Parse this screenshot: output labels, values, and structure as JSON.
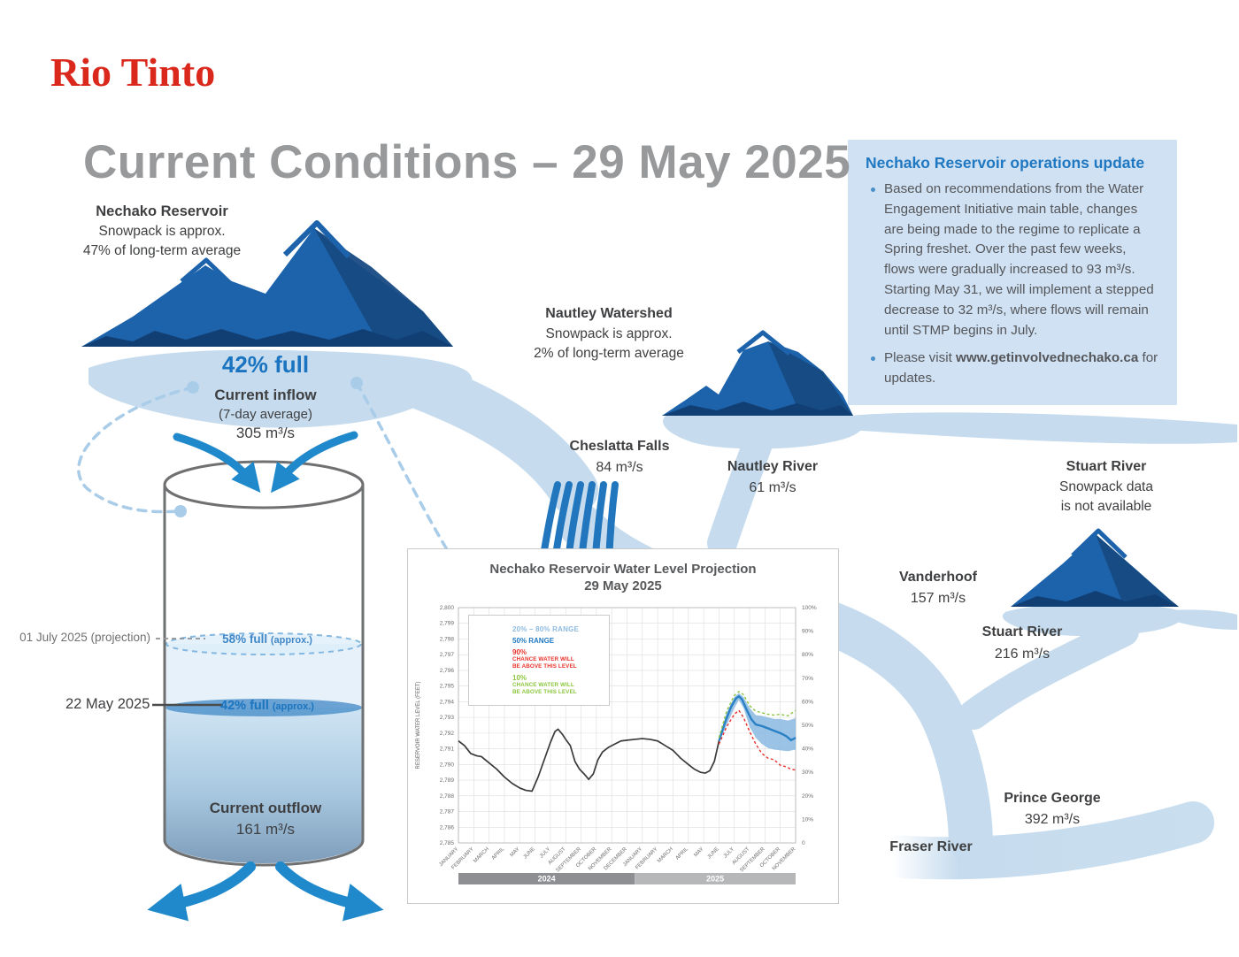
{
  "brand": {
    "logo": "Rio Tinto",
    "logo_color": "#da291c"
  },
  "page_title": "Current Conditions – 29 May 2025",
  "update_box": {
    "title": "Nechako Reservoir operations update",
    "bullet1": "Based on recommendations from the Water Engagement Initiative main table, changes are being made to the regime to replicate a Spring freshet. Over the past few weeks, flows were gradually increased to 93 m³/s. Starting May 31, we will implement a stepped decrease to 32 m³/s, where flows will remain until STMP begins in July.",
    "bullet2_prefix": "Please visit ",
    "bullet2_link": "www.getinvolvednechako.ca",
    "bullet2_suffix": " for updates."
  },
  "nechako_mountain": {
    "name": "Nechako Reservoir",
    "line1": "Snowpack is approx.",
    "line2": "47% of long-term average",
    "fullness": "42% full"
  },
  "inflow": {
    "label": "Current inflow",
    "sub": "(7-day average)",
    "value": "305 m³/s"
  },
  "outflow": {
    "label": "Current outflow",
    "value": "161 m³/s"
  },
  "cylinder": {
    "projection_date": "01 July 2025 (projection)",
    "projection_level": "58% full",
    "projection_approx": "(approx.)",
    "current_date": "22 May 2025",
    "current_level": "42% full",
    "current_approx": "(approx.)"
  },
  "nautley_watershed": {
    "name": "Nautley Watershed",
    "line1": "Snowpack is approx.",
    "line2": "2% of long-term average"
  },
  "stuart_mountain": {
    "name": "Stuart River",
    "line1": "Snowpack data",
    "line2": "is not available"
  },
  "flows": {
    "cheslatta": {
      "name": "Cheslatta Falls",
      "value": "84 m³/s"
    },
    "nautley": {
      "name": "Nautley River",
      "value": "61 m³/s"
    },
    "vanderhoof": {
      "name": "Vanderhoof",
      "value": "157 m³/s"
    },
    "stuart": {
      "name": "Stuart River",
      "value": "216 m³/s"
    },
    "prince_george": {
      "name": "Prince George",
      "value": "392 m³/s"
    },
    "fraser": {
      "name": "Fraser River"
    }
  },
  "legend": {
    "range_label": "20% – 80% RANGE",
    "median_label": "50% RANGE",
    "p90_pct": "90%",
    "p90_line1": "CHANCE WATER WILL",
    "p90_line2": "BE ABOVE THIS LEVEL",
    "p10_pct": "10%",
    "p10_line1": "CHANCE WATER WILL",
    "p10_line2": "BE ABOVE THIS LEVEL"
  },
  "chart_data": {
    "type": "line",
    "title": "Nechako Reservoir Water Level Projection",
    "subtitle": "29 May 2025",
    "ylabel": "RESERVOIR WATER LEVEL (FEET)",
    "ylim": [
      2785,
      2800
    ],
    "y_tick_step": 1,
    "right_axis": {
      "min": 0,
      "max": 100,
      "step": 10,
      "unit": "%",
      "zero_label": "0"
    },
    "grid": true,
    "legend_position": "upper-left",
    "months": [
      "JANUARY",
      "FEBRUARY",
      "MARCH",
      "APRIL",
      "MAY",
      "JUNE",
      "JULY",
      "AUGUST",
      "SEPTEMBER",
      "OCTOBER",
      "NOVEMBER",
      "DECEMBER",
      "JANUARY",
      "FEBRUARY",
      "MARCH",
      "APRIL",
      "MAY",
      "JUNE",
      "JULY",
      "AUGUST",
      "SEPTEMBER",
      "OCTOBER",
      "NOVEMBER"
    ],
    "year_bars": [
      {
        "label": "2024",
        "from": 0,
        "to": 11.5,
        "color": "#8d8f92"
      },
      {
        "label": "2025",
        "from": 11.5,
        "to": 22,
        "color": "#b5b7b9"
      }
    ],
    "series": [
      {
        "name": "historical",
        "color": "#3a3a3a",
        "style": "solid",
        "width": 1.7,
        "points": [
          [
            0,
            2791.5
          ],
          [
            0.4,
            2791.2
          ],
          [
            0.8,
            2790.7
          ],
          [
            1.2,
            2790.55
          ],
          [
            1.5,
            2790.5
          ],
          [
            2,
            2790.1
          ],
          [
            2.5,
            2789.7
          ],
          [
            3,
            2789.2
          ],
          [
            3.5,
            2788.8
          ],
          [
            4,
            2788.5
          ],
          [
            4.4,
            2788.35
          ],
          [
            4.8,
            2788.3
          ],
          [
            5.2,
            2789.2
          ],
          [
            5.6,
            2790.3
          ],
          [
            6,
            2791.4
          ],
          [
            6.3,
            2792.1
          ],
          [
            6.5,
            2792.25
          ],
          [
            6.8,
            2791.9
          ],
          [
            7,
            2791.6
          ],
          [
            7.3,
            2791.2
          ],
          [
            7.6,
            2790.2
          ],
          [
            7.9,
            2789.7
          ],
          [
            8.2,
            2789.4
          ],
          [
            8.5,
            2789.05
          ],
          [
            8.8,
            2789.4
          ],
          [
            9.1,
            2790.3
          ],
          [
            9.4,
            2790.8
          ],
          [
            9.8,
            2791.1
          ],
          [
            10.2,
            2791.3
          ],
          [
            10.6,
            2791.5
          ],
          [
            11,
            2791.55
          ],
          [
            11.5,
            2791.6
          ],
          [
            12,
            2791.65
          ],
          [
            12.5,
            2791.6
          ],
          [
            13,
            2791.5
          ],
          [
            13.5,
            2791.2
          ],
          [
            14,
            2790.9
          ],
          [
            14.5,
            2790.4
          ],
          [
            15,
            2790
          ],
          [
            15.4,
            2789.7
          ],
          [
            15.8,
            2789.5
          ],
          [
            16.1,
            2789.45
          ],
          [
            16.4,
            2789.6
          ],
          [
            16.7,
            2790.2
          ],
          [
            17,
            2791.5
          ]
        ]
      },
      {
        "name": "median_50",
        "color": "#2980c4",
        "style": "solid",
        "width": 2.4,
        "points": [
          [
            17,
            2791.5
          ],
          [
            17.4,
            2792.7
          ],
          [
            17.8,
            2793.7
          ],
          [
            18.1,
            2794.2
          ],
          [
            18.3,
            2794.35
          ],
          [
            18.5,
            2794.15
          ],
          [
            18.8,
            2793.5
          ],
          [
            19.1,
            2792.9
          ],
          [
            19.4,
            2792.55
          ],
          [
            19.8,
            2792.45
          ],
          [
            20.2,
            2792.3
          ],
          [
            20.6,
            2792.15
          ],
          [
            21,
            2792
          ],
          [
            21.4,
            2791.8
          ],
          [
            21.7,
            2791.55
          ],
          [
            22,
            2791.7
          ]
        ]
      },
      {
        "name": "p90_chance_above",
        "color": "#e8312a",
        "style": "dashed",
        "width": 1.4,
        "points": [
          [
            17,
            2791.3
          ],
          [
            17.5,
            2792.4
          ],
          [
            18,
            2793.2
          ],
          [
            18.3,
            2793.45
          ],
          [
            18.6,
            2793
          ],
          [
            19,
            2792.1
          ],
          [
            19.4,
            2791.3
          ],
          [
            19.8,
            2790.7
          ],
          [
            20.2,
            2790.4
          ],
          [
            20.6,
            2790.3
          ],
          [
            21,
            2789.95
          ],
          [
            21.4,
            2789.85
          ],
          [
            21.7,
            2789.7
          ],
          [
            22,
            2789.65
          ]
        ]
      },
      {
        "name": "p10_chance_above",
        "color": "#8cc63f",
        "style": "dashed",
        "width": 1.4,
        "points": [
          [
            17,
            2791.7
          ],
          [
            17.5,
            2793.4
          ],
          [
            18,
            2794.4
          ],
          [
            18.3,
            2794.65
          ],
          [
            18.6,
            2794.45
          ],
          [
            19,
            2793.75
          ],
          [
            19.4,
            2793.4
          ],
          [
            19.8,
            2793.3
          ],
          [
            20.2,
            2793.2
          ],
          [
            20.6,
            2793.15
          ],
          [
            21,
            2793.2
          ],
          [
            21.5,
            2793.1
          ],
          [
            22,
            2793.45
          ]
        ]
      }
    ],
    "band": {
      "name": "range_20_80",
      "color": "#8ab8e2",
      "opacity": 0.85,
      "upper": [
        [
          17,
          2791.6
        ],
        [
          17.5,
          2793.3
        ],
        [
          18,
          2794.3
        ],
        [
          18.3,
          2794.55
        ],
        [
          18.6,
          2794.3
        ],
        [
          19,
          2793.6
        ],
        [
          19.4,
          2793.15
        ],
        [
          19.8,
          2793.1
        ],
        [
          20.2,
          2793
        ],
        [
          20.6,
          2792.9
        ],
        [
          21,
          2792.9
        ],
        [
          21.5,
          2792.8
        ],
        [
          22,
          2792.95
        ]
      ],
      "lower": [
        [
          17,
          2791.4
        ],
        [
          17.5,
          2792.5
        ],
        [
          18,
          2793.6
        ],
        [
          18.3,
          2794.1
        ],
        [
          18.6,
          2793.6
        ],
        [
          19,
          2792.4
        ],
        [
          19.4,
          2791.7
        ],
        [
          19.8,
          2791.3
        ],
        [
          20.2,
          2791.05
        ],
        [
          20.6,
          2790.95
        ],
        [
          21,
          2790.9
        ],
        [
          21.5,
          2790.85
        ],
        [
          22,
          2790.95
        ]
      ]
    }
  }
}
